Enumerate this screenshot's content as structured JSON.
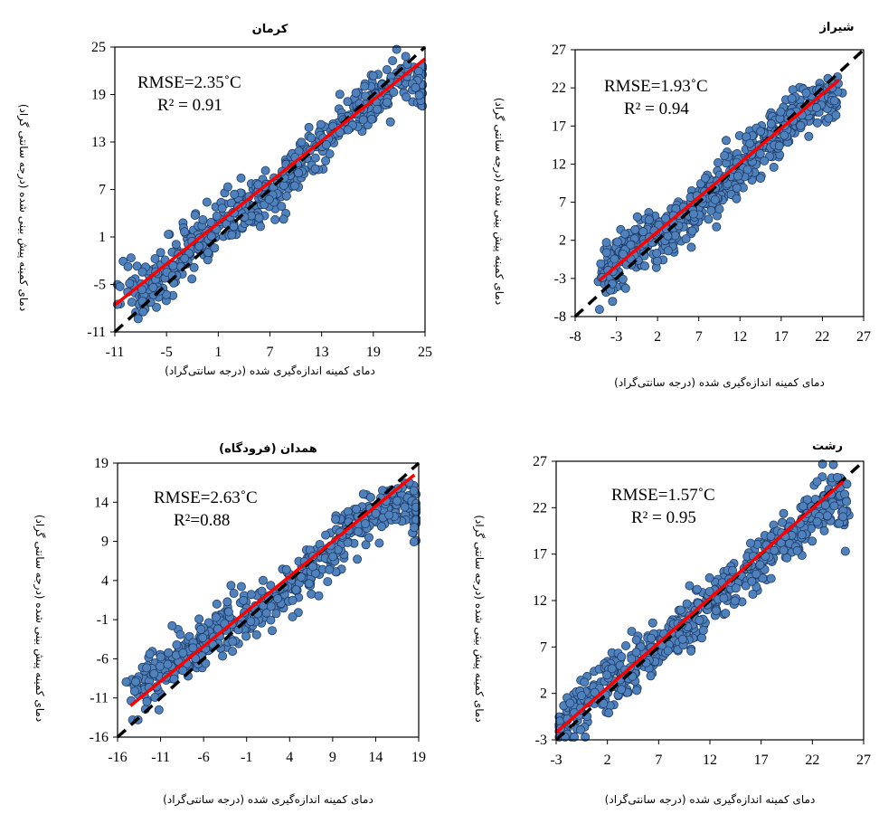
{
  "chart_data": [
    {
      "type": "scatter",
      "title": "کرمان",
      "xlabel": "دمای کمینه اندازه‌گیری شده (درجه سانتی‌گراد)",
      "ylabel": "دمای کمینه پیش بینی شده (درجه سانتی گراد)",
      "xlim": [
        -11,
        25
      ],
      "ylim": [
        -11,
        25
      ],
      "xticks": [
        -11,
        -5,
        1,
        7,
        13,
        19,
        25
      ],
      "yticks": [
        -11,
        -5,
        1,
        7,
        13,
        19,
        25
      ],
      "annotations": [
        "RMSE=2.35˚C",
        "R² = 0.91"
      ],
      "line_1to1": {
        "style": "dashed",
        "color": "#000000",
        "from": [
          -11,
          -11
        ],
        "to": [
          25,
          25
        ]
      },
      "fit_line": {
        "color": "#ff0000",
        "from": [
          -11,
          -7.6
        ],
        "to": [
          25,
          23.5
        ]
      },
      "point_color": "#4f81bd",
      "point_count": 520,
      "series": [
        {
          "x": [
            -10.7,
            -9.2,
            -8.3,
            -7.6,
            -6.8,
            -6.2,
            -5.4,
            -4.7,
            -4.1,
            -3.3,
            -2.6,
            -2.0,
            -1.2,
            -0.5,
            0.3,
            1.0,
            1.8,
            2.5,
            3.2,
            4.0,
            4.8,
            5.5,
            6.2,
            7.0,
            7.8,
            8.5,
            9.3,
            10.0,
            10.8,
            11.5,
            12.3,
            13.0,
            13.8,
            14.5,
            15.3,
            16.0,
            16.8,
            17.5,
            18.3,
            19.0,
            19.8,
            20.6,
            21.4,
            22.3,
            23.5,
            24.6
          ],
          "y": [
            -7.8,
            -5.0,
            -7.0,
            -5.5,
            -4.2,
            -5.6,
            -3.0,
            -3.8,
            -1.8,
            -2.5,
            0.0,
            -1.2,
            1.2,
            0.6,
            2.2,
            1.6,
            3.5,
            2.8,
            4.1,
            5.0,
            4.5,
            6.2,
            5.8,
            7.3,
            6.9,
            8.5,
            8.0,
            9.8,
            10.2,
            11.4,
            12.0,
            12.8,
            13.9,
            14.2,
            15.0,
            15.8,
            16.5,
            17.1,
            17.8,
            18.5,
            19.2,
            19.6,
            20.3,
            20.8,
            21.3,
            20.5
          ]
        }
      ]
    },
    {
      "type": "scatter",
      "title": "شیراز",
      "xlabel": "دمای کمینه اندازه‌گیری شده (درجه سانتی‌گراد)",
      "ylabel": "دمای کمینه پیش بینی شده (درجه سانتی گراد)",
      "xlim": [
        -8,
        27
      ],
      "ylim": [
        -8,
        27
      ],
      "xticks": [
        -8,
        -3,
        2,
        7,
        12,
        17,
        22,
        27
      ],
      "yticks": [
        -8,
        -3,
        2,
        7,
        12,
        17,
        22,
        27
      ],
      "annotations": [
        "RMSE=1.93˚C",
        "R² = 0.94"
      ],
      "line_1to1": {
        "style": "dashed",
        "color": "#000000",
        "from": [
          -8,
          -8
        ],
        "to": [
          27,
          27
        ]
      },
      "fit_line": {
        "color": "#ff0000",
        "from": [
          -5,
          -3.2
        ],
        "to": [
          24,
          23.0
        ]
      },
      "point_color": "#4f81bd",
      "point_count": 620,
      "series": [
        {
          "x": [
            -4.8,
            -4.2,
            -3.6,
            -3.0,
            -2.4,
            -1.8,
            -1.2,
            -0.5,
            0.2,
            0.9,
            1.6,
            2.3,
            3.0,
            3.7,
            4.4,
            5.1,
            5.8,
            6.5,
            7.2,
            7.9,
            8.6,
            9.3,
            10.0,
            10.7,
            11.4,
            12.1,
            12.8,
            13.5,
            14.2,
            14.9,
            15.6,
            16.3,
            17.0,
            17.7,
            18.4,
            19.1,
            19.8,
            20.5,
            21.2,
            22.0,
            22.8,
            23.6
          ],
          "y": [
            -3.0,
            -1.5,
            -2.2,
            0.0,
            -0.8,
            1.0,
            0.4,
            1.8,
            0.9,
            2.6,
            2.0,
            3.2,
            2.4,
            4.0,
            3.6,
            5.1,
            4.8,
            6.2,
            6.8,
            7.3,
            8.1,
            8.8,
            9.4,
            10.3,
            10.9,
            11.5,
            12.6,
            13.1,
            13.8,
            14.6,
            15.2,
            15.9,
            16.5,
            17.3,
            17.9,
            18.6,
            19.2,
            19.9,
            20.3,
            20.8,
            21.2,
            20.6
          ]
        }
      ]
    },
    {
      "type": "scatter",
      "title": "همدان (فرودگاه)",
      "xlabel": "دمای کمینه اندازه‌گیری شده (درجه سانتی‌گراد)",
      "ylabel": "دمای کمینه پیش بینی شده (درجه سانتی گراد)",
      "xlim": [
        -16,
        19
      ],
      "ylim": [
        -16,
        19
      ],
      "xticks": [
        -16,
        -11,
        -6,
        -1,
        4,
        9,
        14,
        19
      ],
      "yticks": [
        -16,
        -11,
        -6,
        -1,
        4,
        9,
        14,
        19
      ],
      "annotations": [
        "RMSE=2.63˚C",
        "R²=0.88"
      ],
      "line_1to1": {
        "style": "dashed",
        "color": "#000000",
        "from": [
          -16,
          -16
        ],
        "to": [
          19,
          19
        ]
      },
      "fit_line": {
        "color": "#ff0000",
        "from": [
          -14.5,
          -12.0
        ],
        "to": [
          18.5,
          17.5
        ]
      },
      "point_color": "#4f81bd",
      "point_count": 560,
      "series": [
        {
          "x": [
            -14.5,
            -13.6,
            -12.7,
            -11.8,
            -10.9,
            -10.0,
            -9.1,
            -8.2,
            -7.3,
            -6.4,
            -5.5,
            -4.6,
            -3.7,
            -2.8,
            -1.9,
            -1.0,
            -0.1,
            0.8,
            1.7,
            2.6,
            3.5,
            4.4,
            5.3,
            6.2,
            7.1,
            8.0,
            8.9,
            9.8,
            10.7,
            11.6,
            12.5,
            13.4,
            14.3,
            15.2,
            16.1,
            17.0,
            18.0,
            18.8
          ],
          "y": [
            -9.5,
            -11.0,
            -8.0,
            -9.2,
            -6.5,
            -7.8,
            -5.0,
            -6.2,
            -4.0,
            -5.1,
            -2.8,
            -3.6,
            -1.5,
            -2.5,
            -0.4,
            -1.2,
            0.8,
            0.0,
            2.0,
            1.2,
            3.4,
            2.6,
            4.5,
            5.2,
            6.3,
            7.1,
            8.0,
            8.8,
            9.9,
            10.6,
            11.5,
            12.4,
            13.3,
            14.1,
            13.8,
            12.5,
            15.2,
            11.0
          ]
        }
      ]
    },
    {
      "type": "scatter",
      "title": "رشت",
      "xlabel": "دمای کمینه اندازه‌گیری شده (درجه سانتی‌گراد)",
      "ylabel": "دمای کمینه پیش بینی شده (درجه سانتی گراد)",
      "xlim": [
        -3,
        27
      ],
      "ylim": [
        -3,
        27
      ],
      "xticks": [
        -3,
        2,
        7,
        12,
        17,
        22,
        27
      ],
      "yticks": [
        -3,
        2,
        7,
        12,
        17,
        22,
        27
      ],
      "annotations": [
        "RMSE=1.57˚C",
        "R² = 0.95"
      ],
      "line_1to1": {
        "style": "dashed",
        "color": "#000000",
        "from": [
          -3,
          -3
        ],
        "to": [
          27,
          27
        ]
      },
      "fit_line": {
        "color": "#ff0000",
        "from": [
          -3,
          -2.2
        ],
        "to": [
          25,
          24.8
        ]
      },
      "point_color": "#4f81bd",
      "point_count": 640,
      "series": [
        {
          "x": [
            -2.8,
            -2.0,
            -1.2,
            -0.4,
            0.4,
            1.2,
            2.0,
            2.8,
            3.6,
            4.4,
            5.2,
            6.0,
            6.8,
            7.6,
            8.4,
            9.2,
            10.0,
            10.8,
            11.6,
            12.4,
            13.2,
            14.0,
            14.8,
            15.6,
            16.4,
            17.2,
            18.0,
            18.8,
            19.6,
            20.4,
            21.2,
            22.0,
            22.8,
            23.6,
            24.4,
            25.0
          ],
          "y": [
            -1.8,
            -1.0,
            0.2,
            0.8,
            1.5,
            2.6,
            3.2,
            4.0,
            3.6,
            5.2,
            5.8,
            6.5,
            6.0,
            7.3,
            8.0,
            8.6,
            9.6,
            10.2,
            11.0,
            11.9,
            12.8,
            13.5,
            14.3,
            15.0,
            15.9,
            16.8,
            17.6,
            18.3,
            19.1,
            19.9,
            20.7,
            21.4,
            22.2,
            22.9,
            23.3,
            21.5
          ]
        }
      ]
    }
  ]
}
